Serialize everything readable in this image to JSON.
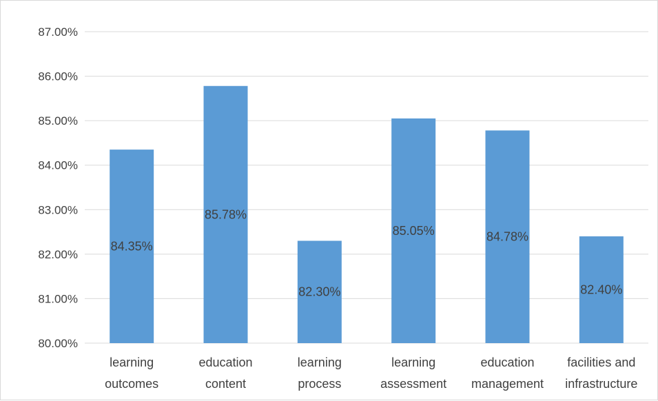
{
  "colors": {
    "bar": "#5b9bd5",
    "gridline": "#d9d9d9",
    "text": "#404040",
    "border": "#d9d9d9"
  },
  "chart_data": {
    "type": "bar",
    "title": "",
    "xlabel": "",
    "ylabel": "",
    "categories": [
      [
        "learning",
        "outcomes"
      ],
      [
        "education",
        "content"
      ],
      [
        "learning",
        "process"
      ],
      [
        "learning",
        "assessment"
      ],
      [
        "education",
        "management"
      ],
      [
        "facilities and",
        "infrastructure"
      ]
    ],
    "values": [
      84.35,
      85.78,
      82.3,
      85.05,
      84.78,
      82.4
    ],
    "data_labels": [
      "84.35%",
      "85.78%",
      "82.30%",
      "85.05%",
      "84.78%",
      "82.40%"
    ],
    "ylim": [
      80,
      87
    ],
    "yticks": [
      80,
      81,
      82,
      83,
      84,
      85,
      86,
      87
    ],
    "ytick_labels": [
      "80.00%",
      "81.00%",
      "82.00%",
      "83.00%",
      "84.00%",
      "85.00%",
      "86.00%",
      "87.00%"
    ],
    "grid": true,
    "legend": "none"
  }
}
